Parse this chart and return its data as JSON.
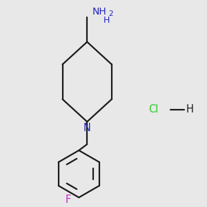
{
  "background_color": "#e8e8e8",
  "line_color": "#1a1a1a",
  "line_width": 1.6,
  "NH2_color": "#2222bb",
  "N_color": "#2222bb",
  "F_color": "#cc22cc",
  "Cl_color": "#22cc22",
  "figsize": [
    3.0,
    3.0
  ],
  "dpi": 100,
  "xlim": [
    0.0,
    1.0
  ],
  "ylim": [
    0.0,
    1.0
  ]
}
